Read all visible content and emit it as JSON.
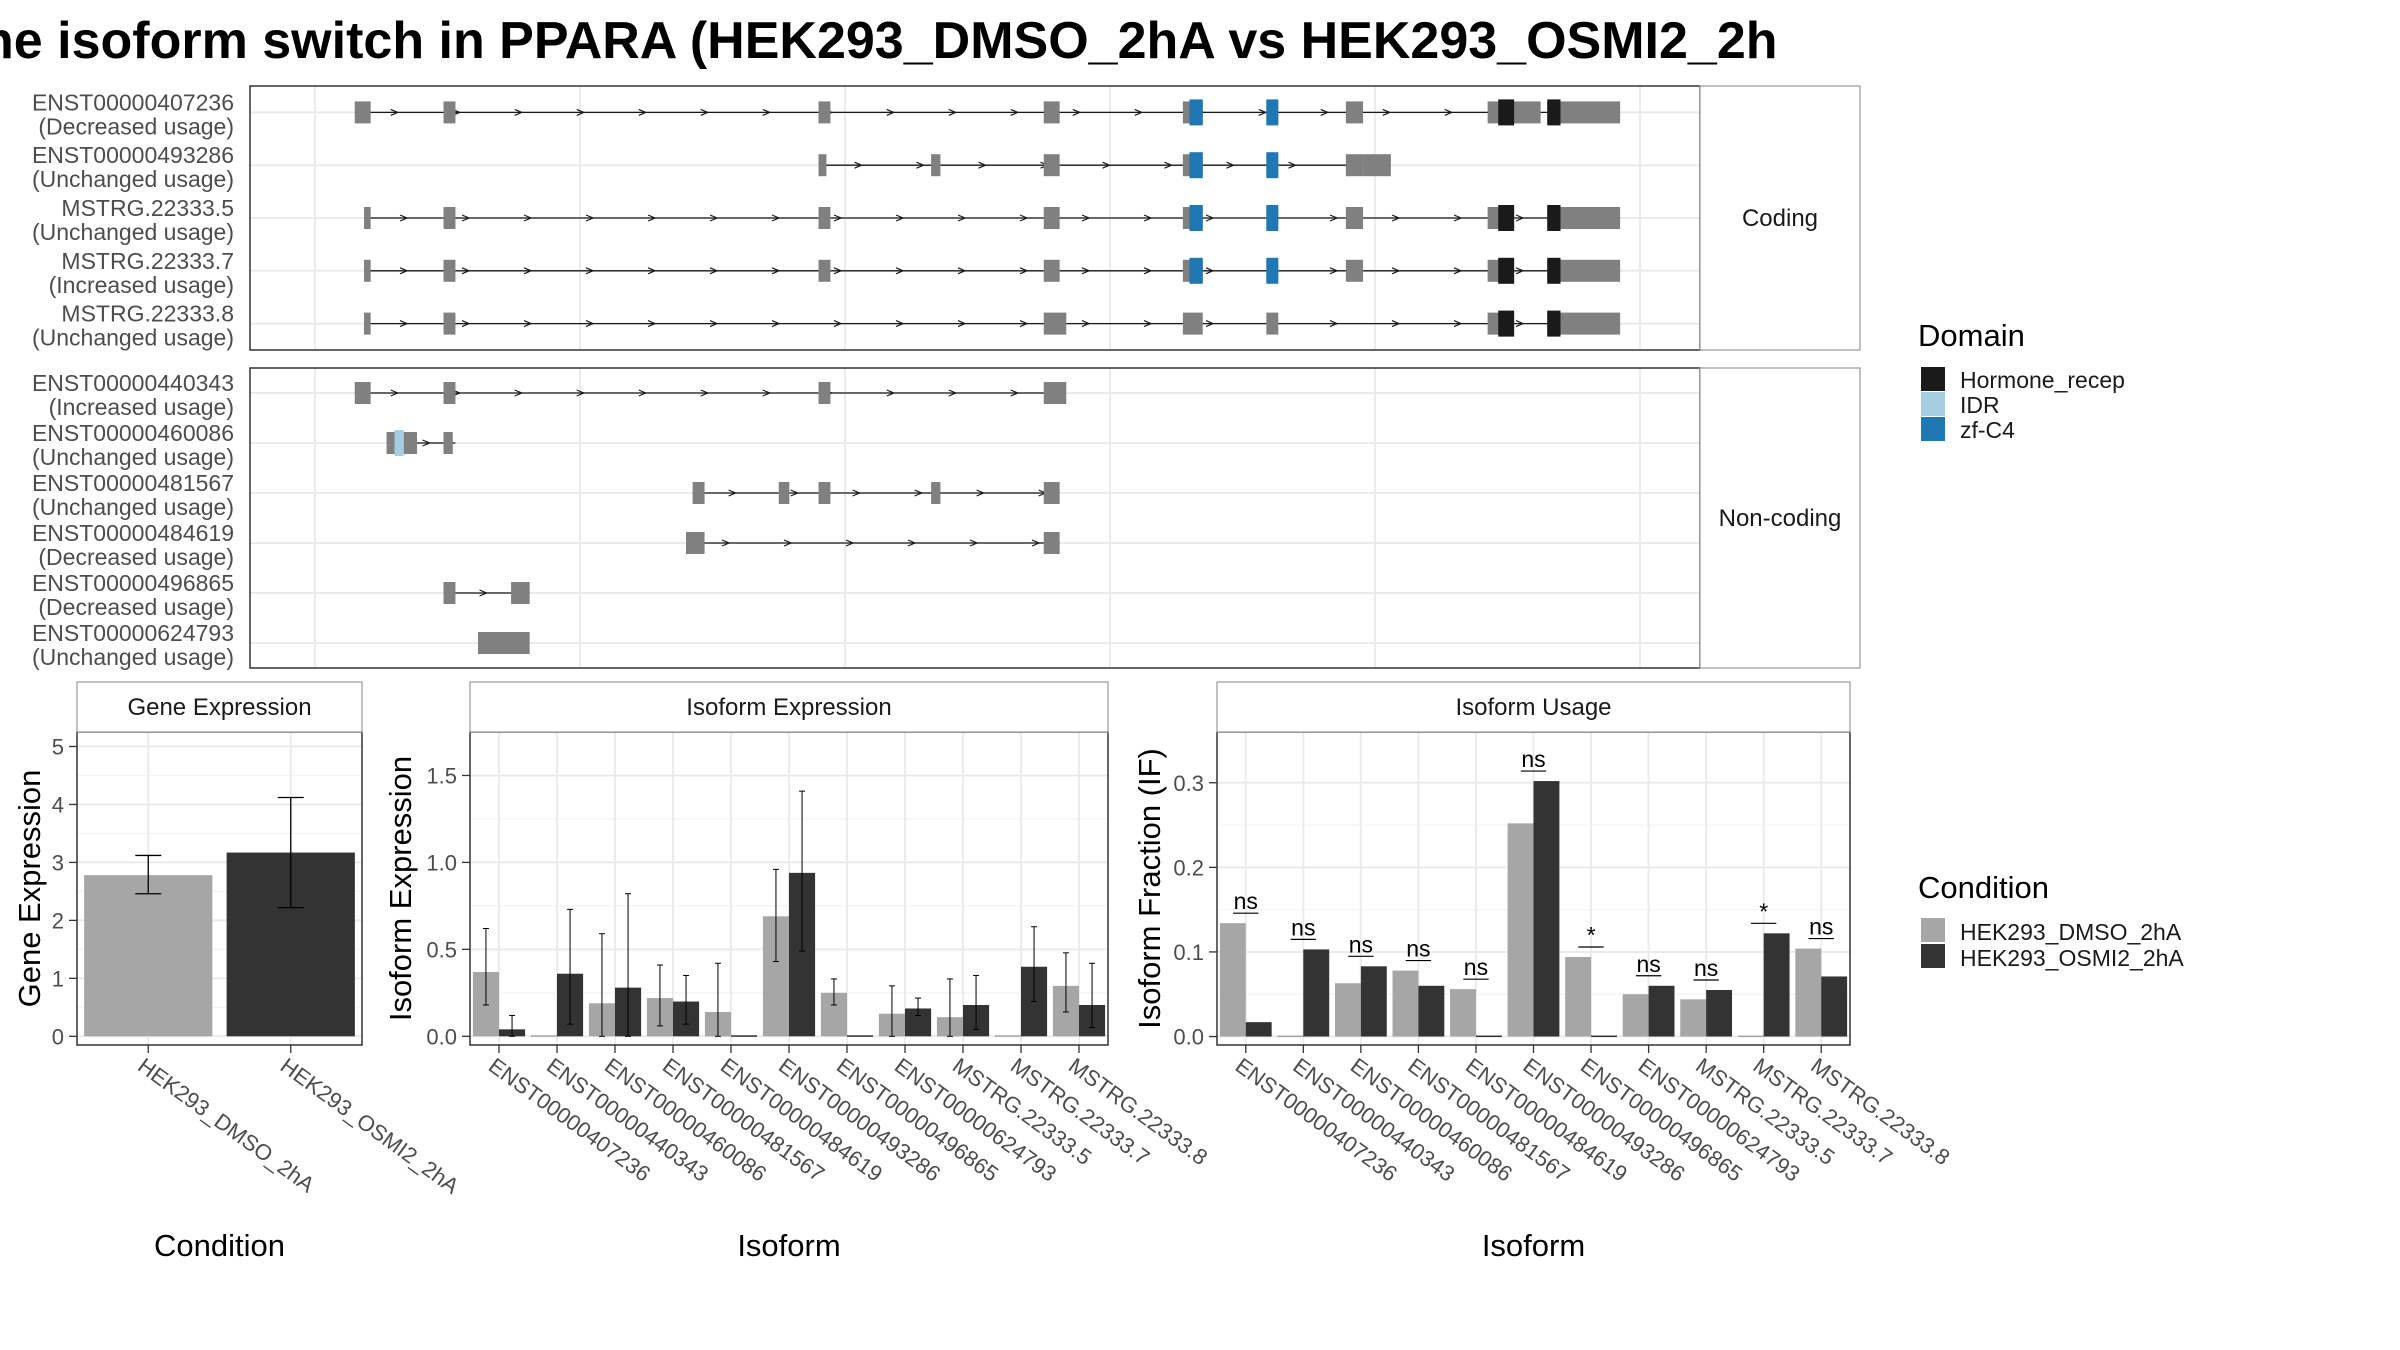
{
  "title": "he isoform switch in PPARA (HEK293_DMSO_2hA vs HEK293_OSMI2_2h",
  "colors": {
    "intron": "#1a1a1a",
    "exon": "#808080",
    "hormone_recep": "#1a1a1a",
    "idr": "#a6cee3",
    "zf_c4": "#1f78b4",
    "dmso": "#a6a6a6",
    "osmi": "#333333",
    "panel_border": "#333333",
    "grid": "#ebebeb",
    "strip_fill": "#ffffff"
  },
  "structure": {
    "x_range": [
      0,
      1000
    ],
    "panels": [
      {
        "name": "Coding",
        "transcripts": [
          {
            "id": "ENST00000407236",
            "usage": "(Decreased usage)",
            "intron": [
              30,
              985
            ],
            "exons": [
              [
                30,
                42
              ],
              [
                97,
                106
              ],
              [
                380,
                389
              ],
              [
                550,
                562
              ],
              [
                655,
                670
              ],
              [
                718,
                727
              ],
              [
                778,
                791
              ],
              [
                885,
                925
              ],
              [
                930,
                985
              ]
            ],
            "domains": [
              {
                "type": "zf_c4",
                "range": [
                  660,
                  670
                ]
              },
              {
                "type": "zf_c4",
                "range": [
                  718,
                  727
                ]
              },
              {
                "type": "hormone_recep",
                "range": [
                  893,
                  905
                ]
              },
              {
                "type": "hormone_recep",
                "range": [
                  930,
                  940
                ]
              }
            ]
          },
          {
            "id": "ENST00000493286",
            "usage": "(Unchanged usage)",
            "intron": [
              380,
              782
            ],
            "exons": [
              [
                380,
                386
              ],
              [
                465,
                472
              ],
              [
                550,
                562
              ],
              [
                655,
                670
              ],
              [
                718,
                727
              ],
              [
                778,
                791
              ],
              [
                791,
                812
              ]
            ],
            "domains": [
              {
                "type": "zf_c4",
                "range": [
                  660,
                  670
                ]
              },
              {
                "type": "zf_c4",
                "range": [
                  718,
                  727
                ]
              }
            ]
          },
          {
            "id": "MSTRG.22333.5",
            "usage": "(Unchanged usage)",
            "intron": [
              37,
              985
            ],
            "exons": [
              [
                37,
                42
              ],
              [
                97,
                106
              ],
              [
                380,
                389
              ],
              [
                550,
                562
              ],
              [
                655,
                670
              ],
              [
                718,
                727
              ],
              [
                778,
                791
              ],
              [
                885,
                905
              ],
              [
                930,
                985
              ]
            ],
            "domains": [
              {
                "type": "zf_c4",
                "range": [
                  660,
                  670
                ]
              },
              {
                "type": "zf_c4",
                "range": [
                  718,
                  727
                ]
              },
              {
                "type": "hormone_recep",
                "range": [
                  893,
                  905
                ]
              },
              {
                "type": "hormone_recep",
                "range": [
                  930,
                  940
                ]
              }
            ]
          },
          {
            "id": "MSTRG.22333.7",
            "usage": "(Increased usage)",
            "intron": [
              37,
              985
            ],
            "exons": [
              [
                37,
                42
              ],
              [
                97,
                106
              ],
              [
                380,
                389
              ],
              [
                550,
                562
              ],
              [
                655,
                670
              ],
              [
                718,
                727
              ],
              [
                778,
                791
              ],
              [
                885,
                905
              ],
              [
                930,
                985
              ]
            ],
            "domains": [
              {
                "type": "zf_c4",
                "range": [
                  660,
                  670
                ]
              },
              {
                "type": "zf_c4",
                "range": [
                  718,
                  727
                ]
              },
              {
                "type": "hormone_recep",
                "range": [
                  893,
                  905
                ]
              },
              {
                "type": "hormone_recep",
                "range": [
                  930,
                  940
                ]
              }
            ]
          },
          {
            "id": "MSTRG.22333.8",
            "usage": "(Unchanged usage)",
            "intron": [
              37,
              985
            ],
            "exons": [
              [
                37,
                42
              ],
              [
                97,
                106
              ],
              [
                550,
                567
              ],
              [
                655,
                670
              ],
              [
                718,
                727
              ],
              [
                885,
                905
              ],
              [
                930,
                985
              ]
            ],
            "domains": [
              {
                "type": "hormone_recep",
                "range": [
                  893,
                  905
                ]
              },
              {
                "type": "hormone_recep",
                "range": [
                  930,
                  940
                ]
              }
            ]
          }
        ]
      },
      {
        "name": "Non-coding",
        "transcripts": [
          {
            "id": "ENST00000440343",
            "usage": "(Increased usage)",
            "intron": [
              30,
              562
            ],
            "exons": [
              [
                30,
                42
              ],
              [
                97,
                106
              ],
              [
                380,
                389
              ],
              [
                550,
                567
              ]
            ],
            "domains": []
          },
          {
            "id": "ENST00000460086",
            "usage": "(Unchanged usage)",
            "intron": [
              54,
              106
            ],
            "exons": [
              [
                54,
                60
              ],
              [
                60,
                67
              ],
              [
                67,
                77
              ],
              [
                97,
                104
              ]
            ],
            "domains": [
              {
                "type": "idr",
                "range": [
                  60,
                  67
                ]
              }
            ]
          },
          {
            "id": "ENST00000481567",
            "usage": "(Unchanged usage)",
            "intron": [
              285,
              562
            ],
            "exons": [
              [
                285,
                294
              ],
              [
                350,
                358
              ],
              [
                380,
                389
              ],
              [
                465,
                472
              ],
              [
                550,
                562
              ]
            ],
            "domains": []
          },
          {
            "id": "ENST00000484619",
            "usage": "(Decreased usage)",
            "intron": [
              280,
              562
            ],
            "exons": [
              [
                280,
                294
              ],
              [
                550,
                562
              ]
            ],
            "domains": []
          },
          {
            "id": "ENST00000496865",
            "usage": "(Decreased usage)",
            "intron": [
              97,
              162
            ],
            "exons": [
              [
                97,
                106
              ],
              [
                148,
                162
              ]
            ],
            "domains": []
          },
          {
            "id": "ENST00000624793",
            "usage": "(Unchanged usage)",
            "intron": null,
            "exons": [
              [
                123,
                162
              ]
            ],
            "domains": []
          }
        ]
      }
    ]
  },
  "legends": {
    "domain": {
      "title": "Domain",
      "items": [
        {
          "label": "Hormone_recep",
          "color": "#1a1a1a"
        },
        {
          "label": "IDR",
          "color": "#a6cee3"
        },
        {
          "label": "zf-C4",
          "color": "#1f78b4"
        }
      ]
    },
    "condition": {
      "title": "Condition",
      "items": [
        {
          "label": "HEK293_DMSO_2hA",
          "color": "#a6a6a6"
        },
        {
          "label": "HEK293_OSMI2_2hA",
          "color": "#333333"
        }
      ]
    }
  },
  "chart_data": [
    {
      "type": "bar",
      "title": "Gene Expression",
      "xlabel": "Condition",
      "ylabel": "Gene Expression",
      "ylim": [
        -0.15,
        5.25
      ],
      "yticks": [
        0,
        1,
        2,
        3,
        4,
        5
      ],
      "categories": [
        "HEK293_DMSO_2hA",
        "HEK293_OSMI2_2hA"
      ],
      "values": [
        2.78,
        3.17
      ],
      "error": [
        [
          2.46,
          3.12
        ],
        [
          2.22,
          4.12
        ]
      ]
    },
    {
      "type": "bar",
      "title": "Isoform Expression",
      "xlabel": "Isoform",
      "ylabel": "Isoform Expression",
      "ylim": [
        -0.05,
        1.75
      ],
      "yticks": [
        0.0,
        0.5,
        1.0,
        1.5
      ],
      "ytick_labels": [
        "0.0",
        "0.5",
        "1.0",
        "1.5"
      ],
      "categories": [
        "ENST00000407236",
        "ENST00000440343",
        "ENST00000460086",
        "ENST00000481567",
        "ENST00000484619",
        "ENST00000493286",
        "ENST00000496865",
        "ENST00000624793",
        "MSTRG.22333.5",
        "MSTRG.22333.7",
        "MSTRG.22333.8"
      ],
      "series": [
        {
          "name": "HEK293_DMSO_2hA",
          "values": [
            0.37,
            0.0,
            0.19,
            0.22,
            0.14,
            0.69,
            0.25,
            0.13,
            0.11,
            0.0,
            0.29
          ],
          "error": [
            [
              0.18,
              0.62
            ],
            [
              0,
              0
            ],
            [
              0,
              0.59
            ],
            [
              0.06,
              0.41
            ],
            [
              0,
              0.42
            ],
            [
              0.43,
              0.96
            ],
            [
              0.18,
              0.33
            ],
            [
              0,
              0.29
            ],
            [
              0,
              0.33
            ],
            [
              0,
              0
            ],
            [
              0.14,
              0.48
            ]
          ]
        },
        {
          "name": "HEK293_OSMI2_2hA",
          "values": [
            0.04,
            0.36,
            0.28,
            0.2,
            0.0,
            0.94,
            0.0,
            0.16,
            0.18,
            0.4,
            0.18
          ],
          "error": [
            [
              0,
              0.12
            ],
            [
              0.07,
              0.73
            ],
            [
              0,
              0.82
            ],
            [
              0.07,
              0.35
            ],
            [
              0,
              0
            ],
            [
              0.49,
              1.41
            ],
            [
              0,
              0
            ],
            [
              0.12,
              0.22
            ],
            [
              0.04,
              0.35
            ],
            [
              0.2,
              0.63
            ],
            [
              0.05,
              0.42
            ]
          ]
        }
      ]
    },
    {
      "type": "bar",
      "title": "Isoform Usage",
      "xlabel": "Isoform",
      "ylabel": "Isoform Fraction (IF)",
      "ylim": [
        -0.01,
        0.36
      ],
      "yticks": [
        0.0,
        0.1,
        0.2,
        0.3
      ],
      "ytick_labels": [
        "0.0",
        "0.1",
        "0.2",
        "0.3"
      ],
      "categories": [
        "ENST00000407236",
        "ENST00000440343",
        "ENST00000460086",
        "ENST00000481567",
        "ENST00000484619",
        "ENST00000493286",
        "ENST00000496865",
        "ENST00000624793",
        "MSTRG.22333.5",
        "MSTRG.22333.7",
        "MSTRG.22333.8"
      ],
      "series": [
        {
          "name": "HEK293_DMSO_2hA",
          "values": [
            0.134,
            0.0,
            0.063,
            0.078,
            0.056,
            0.252,
            0.094,
            0.05,
            0.044,
            0.0,
            0.104
          ]
        },
        {
          "name": "HEK293_OSMI2_2hA",
          "values": [
            0.017,
            0.103,
            0.083,
            0.06,
            0.0,
            0.302,
            0.0,
            0.06,
            0.055,
            0.122,
            0.071
          ]
        }
      ],
      "significance": [
        "ns",
        "ns",
        "ns",
        "ns",
        "ns",
        "ns",
        "*",
        "ns",
        "ns",
        "*",
        "ns"
      ]
    }
  ]
}
